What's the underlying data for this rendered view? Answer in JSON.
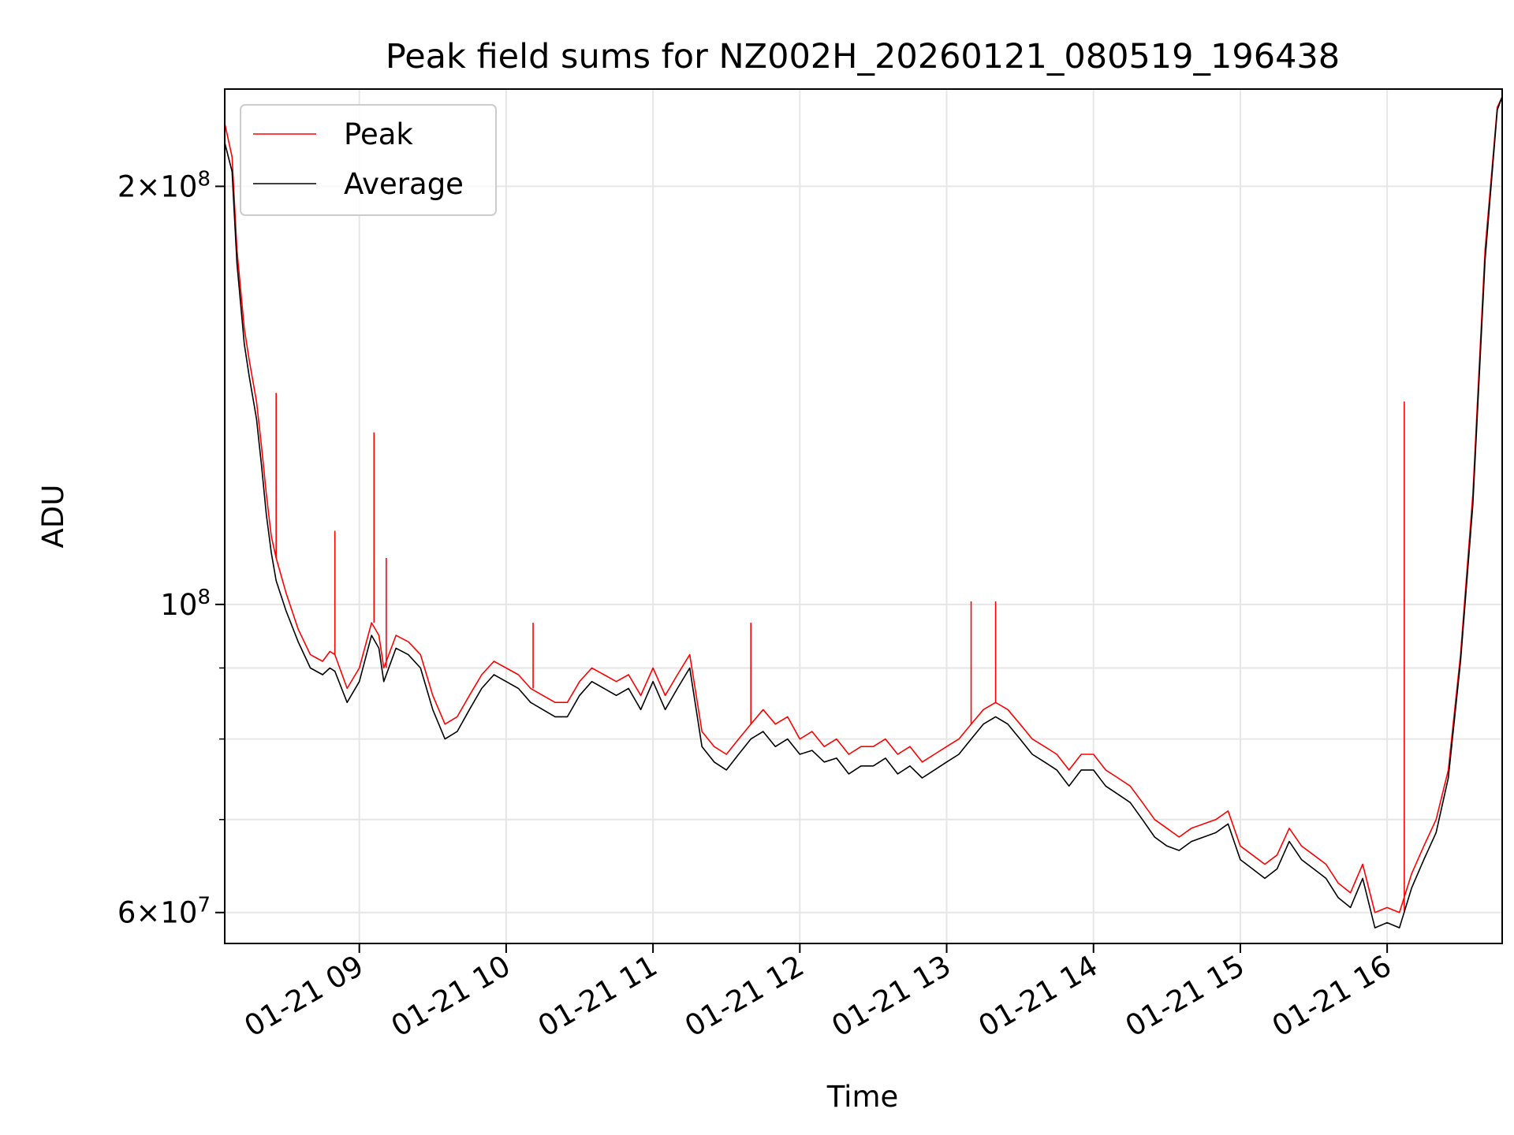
{
  "chart_data": {
    "type": "line",
    "title": "Peak field sums for NZ002H_20260121_080519_196438",
    "xlabel": "Time",
    "ylabel": "ADU",
    "yscale": "log",
    "xlim": [
      "2026-01-21 08:05",
      "2026-01-21 16:47"
    ],
    "ylim": [
      57000000,
      235000000
    ],
    "grid": true,
    "legend": {
      "placement": "upper-left"
    },
    "x_ticks": [
      "01-21 09",
      "01-21 10",
      "01-21 11",
      "01-21 12",
      "01-21 13",
      "01-21 14",
      "01-21 15",
      "01-21 16"
    ],
    "y_ticks_major": [
      {
        "value": 60000000,
        "mantissa": "6",
        "exponent": "7"
      },
      {
        "value": 100000000,
        "mantissa": "",
        "exponent": "8"
      },
      {
        "value": 200000000,
        "mantissa": "2",
        "exponent": "8"
      }
    ],
    "y_ticks_minor": [
      70000000,
      80000000,
      90000000
    ],
    "series": [
      {
        "name": "Peak",
        "color": "#ff0000",
        "x": [
          "2026-01-21 08:05",
          "2026-01-21 08:08",
          "2026-01-21 08:10",
          "2026-01-21 08:13",
          "2026-01-21 08:15",
          "2026-01-21 08:18",
          "2026-01-21 08:20",
          "2026-01-21 08:22",
          "2026-01-21 08:24",
          "2026-01-21 08:26",
          "2026-01-21 08:30",
          "2026-01-21 08:35",
          "2026-01-21 08:40",
          "2026-01-21 08:45",
          "2026-01-21 08:48",
          "2026-01-21 08:50",
          "2026-01-21 08:55",
          "2026-01-21 09:00",
          "2026-01-21 09:05",
          "2026-01-21 09:08",
          "2026-01-21 09:10",
          "2026-01-21 09:15",
          "2026-01-21 09:20",
          "2026-01-21 09:25",
          "2026-01-21 09:30",
          "2026-01-21 09:35",
          "2026-01-21 09:40",
          "2026-01-21 09:45",
          "2026-01-21 09:50",
          "2026-01-21 09:55",
          "2026-01-21 10:00",
          "2026-01-21 10:05",
          "2026-01-21 10:10",
          "2026-01-21 10:15",
          "2026-01-21 10:20",
          "2026-01-21 10:25",
          "2026-01-21 10:30",
          "2026-01-21 10:35",
          "2026-01-21 10:40",
          "2026-01-21 10:45",
          "2026-01-21 10:50",
          "2026-01-21 10:55",
          "2026-01-21 11:00",
          "2026-01-21 11:05",
          "2026-01-21 11:10",
          "2026-01-21 11:15",
          "2026-01-21 11:20",
          "2026-01-21 11:25",
          "2026-01-21 11:30",
          "2026-01-21 11:35",
          "2026-01-21 11:40",
          "2026-01-21 11:45",
          "2026-01-21 11:50",
          "2026-01-21 11:55",
          "2026-01-21 12:00",
          "2026-01-21 12:05",
          "2026-01-21 12:10",
          "2026-01-21 12:15",
          "2026-01-21 12:20",
          "2026-01-21 12:25",
          "2026-01-21 12:30",
          "2026-01-21 12:35",
          "2026-01-21 12:40",
          "2026-01-21 12:45",
          "2026-01-21 12:50",
          "2026-01-21 12:55",
          "2026-01-21 13:00",
          "2026-01-21 13:05",
          "2026-01-21 13:10",
          "2026-01-21 13:15",
          "2026-01-21 13:20",
          "2026-01-21 13:25",
          "2026-01-21 13:30",
          "2026-01-21 13:35",
          "2026-01-21 13:40",
          "2026-01-21 13:45",
          "2026-01-21 13:50",
          "2026-01-21 13:55",
          "2026-01-21 14:00",
          "2026-01-21 14:05",
          "2026-01-21 14:10",
          "2026-01-21 14:15",
          "2026-01-21 14:20",
          "2026-01-21 14:25",
          "2026-01-21 14:30",
          "2026-01-21 14:35",
          "2026-01-21 14:40",
          "2026-01-21 14:45",
          "2026-01-21 14:50",
          "2026-01-21 14:55",
          "2026-01-21 15:00",
          "2026-01-21 15:05",
          "2026-01-21 15:10",
          "2026-01-21 15:15",
          "2026-01-21 15:20",
          "2026-01-21 15:25",
          "2026-01-21 15:30",
          "2026-01-21 15:35",
          "2026-01-21 15:40",
          "2026-01-21 15:45",
          "2026-01-21 15:50",
          "2026-01-21 15:55",
          "2026-01-21 16:00",
          "2026-01-21 16:05",
          "2026-01-21 16:10",
          "2026-01-21 16:15",
          "2026-01-21 16:20",
          "2026-01-21 16:25",
          "2026-01-21 16:30",
          "2026-01-21 16:35",
          "2026-01-21 16:40",
          "2026-01-21 16:45",
          "2026-01-21 16:47"
        ],
        "y": [
          222000000,
          210000000,
          180000000,
          158000000,
          150000000,
          140000000,
          130000000,
          120000000,
          112000000,
          108000000,
          102000000,
          96000000,
          92000000,
          91000000,
          92500000,
          92000000,
          87000000,
          90000000,
          97000000,
          95000000,
          90000000,
          95000000,
          94000000,
          92000000,
          86000000,
          82000000,
          83000000,
          86000000,
          89000000,
          91000000,
          90000000,
          89000000,
          87000000,
          86000000,
          85000000,
          85000000,
          88000000,
          90000000,
          89000000,
          88000000,
          89000000,
          86000000,
          90000000,
          86000000,
          89000000,
          92000000,
          81000000,
          79000000,
          78000000,
          80000000,
          82000000,
          84000000,
          82000000,
          83000000,
          80000000,
          81000000,
          79000000,
          80000000,
          78000000,
          79000000,
          79000000,
          80000000,
          78000000,
          79000000,
          77000000,
          78000000,
          79000000,
          80000000,
          82000000,
          84000000,
          85000000,
          84000000,
          82000000,
          80000000,
          79000000,
          78000000,
          76000000,
          78000000,
          78000000,
          76000000,
          75000000,
          74000000,
          72000000,
          70000000,
          69000000,
          68000000,
          69000000,
          69500000,
          70000000,
          71000000,
          67000000,
          66000000,
          65000000,
          66000000,
          69000000,
          67000000,
          66000000,
          65000000,
          63000000,
          62000000,
          65000000,
          60000000,
          60500000,
          60000000,
          64000000,
          67000000,
          70000000,
          76000000,
          92000000,
          120000000,
          180000000,
          228000000,
          232000000
        ],
        "spikes": [
          {
            "x": "2026-01-21 08:26",
            "y": 142000000
          },
          {
            "x": "2026-01-21 08:50",
            "y": 113000000
          },
          {
            "x": "2026-01-21 09:06",
            "y": 133000000
          },
          {
            "x": "2026-01-21 09:11",
            "y": 108000000
          },
          {
            "x": "2026-01-21 10:11",
            "y": 97000000
          },
          {
            "x": "2026-01-21 11:40",
            "y": 97000000
          },
          {
            "x": "2026-01-21 13:10",
            "y": 100500000
          },
          {
            "x": "2026-01-21 13:20",
            "y": 100500000
          },
          {
            "x": "2026-01-21 16:07",
            "y": 140000000
          }
        ]
      },
      {
        "name": "Average",
        "color": "#000000",
        "x": [
          "2026-01-21 08:05",
          "2026-01-21 08:08",
          "2026-01-21 08:10",
          "2026-01-21 08:13",
          "2026-01-21 08:15",
          "2026-01-21 08:18",
          "2026-01-21 08:20",
          "2026-01-21 08:22",
          "2026-01-21 08:24",
          "2026-01-21 08:26",
          "2026-01-21 08:30",
          "2026-01-21 08:35",
          "2026-01-21 08:40",
          "2026-01-21 08:45",
          "2026-01-21 08:48",
          "2026-01-21 08:50",
          "2026-01-21 08:55",
          "2026-01-21 09:00",
          "2026-01-21 09:05",
          "2026-01-21 09:08",
          "2026-01-21 09:10",
          "2026-01-21 09:15",
          "2026-01-21 09:20",
          "2026-01-21 09:25",
          "2026-01-21 09:30",
          "2026-01-21 09:35",
          "2026-01-21 09:40",
          "2026-01-21 09:45",
          "2026-01-21 09:50",
          "2026-01-21 09:55",
          "2026-01-21 10:00",
          "2026-01-21 10:05",
          "2026-01-21 10:10",
          "2026-01-21 10:15",
          "2026-01-21 10:20",
          "2026-01-21 10:25",
          "2026-01-21 10:30",
          "2026-01-21 10:35",
          "2026-01-21 10:40",
          "2026-01-21 10:45",
          "2026-01-21 10:50",
          "2026-01-21 10:55",
          "2026-01-21 11:00",
          "2026-01-21 11:05",
          "2026-01-21 11:10",
          "2026-01-21 11:15",
          "2026-01-21 11:20",
          "2026-01-21 11:25",
          "2026-01-21 11:30",
          "2026-01-21 11:35",
          "2026-01-21 11:40",
          "2026-01-21 11:45",
          "2026-01-21 11:50",
          "2026-01-21 11:55",
          "2026-01-21 12:00",
          "2026-01-21 12:05",
          "2026-01-21 12:10",
          "2026-01-21 12:15",
          "2026-01-21 12:20",
          "2026-01-21 12:25",
          "2026-01-21 12:30",
          "2026-01-21 12:35",
          "2026-01-21 12:40",
          "2026-01-21 12:45",
          "2026-01-21 12:50",
          "2026-01-21 12:55",
          "2026-01-21 13:00",
          "2026-01-21 13:05",
          "2026-01-21 13:10",
          "2026-01-21 13:15",
          "2026-01-21 13:20",
          "2026-01-21 13:25",
          "2026-01-21 13:30",
          "2026-01-21 13:35",
          "2026-01-21 13:40",
          "2026-01-21 13:45",
          "2026-01-21 13:50",
          "2026-01-21 13:55",
          "2026-01-21 14:00",
          "2026-01-21 14:05",
          "2026-01-21 14:10",
          "2026-01-21 14:15",
          "2026-01-21 14:20",
          "2026-01-21 14:25",
          "2026-01-21 14:30",
          "2026-01-21 14:35",
          "2026-01-21 14:40",
          "2026-01-21 14:45",
          "2026-01-21 14:50",
          "2026-01-21 14:55",
          "2026-01-21 15:00",
          "2026-01-21 15:05",
          "2026-01-21 15:10",
          "2026-01-21 15:15",
          "2026-01-21 15:20",
          "2026-01-21 15:25",
          "2026-01-21 15:30",
          "2026-01-21 15:35",
          "2026-01-21 15:40",
          "2026-01-21 15:45",
          "2026-01-21 15:50",
          "2026-01-21 15:55",
          "2026-01-21 16:00",
          "2026-01-21 16:05",
          "2026-01-21 16:10",
          "2026-01-21 16:15",
          "2026-01-21 16:20",
          "2026-01-21 16:25",
          "2026-01-21 16:30",
          "2026-01-21 16:35",
          "2026-01-21 16:40",
          "2026-01-21 16:45",
          "2026-01-21 16:47"
        ],
        "y": [
          215000000,
          205000000,
          176000000,
          154000000,
          146000000,
          136000000,
          126000000,
          116000000,
          109000000,
          104000000,
          99000000,
          94000000,
          90000000,
          89000000,
          90000000,
          89500000,
          85000000,
          88000000,
          95000000,
          93000000,
          88000000,
          93000000,
          92000000,
          90000000,
          84000000,
          80000000,
          81000000,
          84000000,
          87000000,
          89000000,
          88000000,
          87000000,
          85000000,
          84000000,
          83000000,
          83000000,
          86000000,
          88000000,
          87000000,
          86000000,
          87000000,
          84000000,
          88000000,
          84000000,
          87000000,
          90000000,
          79000000,
          77000000,
          76000000,
          78000000,
          80000000,
          81000000,
          79000000,
          80000000,
          78000000,
          78500000,
          77000000,
          77500000,
          75500000,
          76500000,
          76500000,
          77500000,
          75500000,
          76500000,
          75000000,
          76000000,
          77000000,
          78000000,
          80000000,
          82000000,
          83000000,
          82000000,
          80000000,
          78000000,
          77000000,
          76000000,
          74000000,
          76000000,
          76000000,
          74000000,
          73000000,
          72000000,
          70000000,
          68000000,
          67000000,
          66500000,
          67500000,
          68000000,
          68500000,
          69500000,
          65500000,
          64500000,
          63500000,
          64500000,
          67500000,
          65500000,
          64500000,
          63500000,
          61500000,
          60500000,
          63500000,
          58500000,
          59000000,
          58500000,
          62500000,
          65500000,
          68500000,
          75000000,
          91000000,
          118000000,
          177000000,
          227000000,
          232000000
        ]
      }
    ]
  }
}
